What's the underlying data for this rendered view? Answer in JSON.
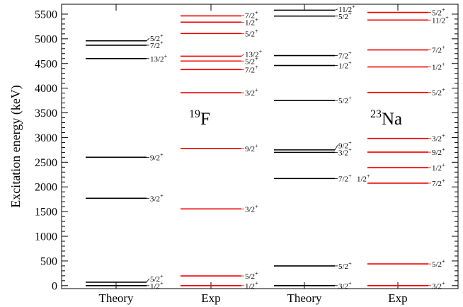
{
  "chart_data": {
    "type": "level-scheme",
    "ylabel": "Excitation energy (keV)",
    "ylim": [
      -60,
      5700
    ],
    "yticks": [
      0,
      500,
      1000,
      1500,
      2000,
      2500,
      3000,
      3500,
      4000,
      4500,
      5000,
      5500
    ],
    "categories": [
      "Theory",
      "Exp",
      "Theory",
      "Exp"
    ],
    "nuclei": [
      {
        "mass": "19",
        "symbol": "F",
        "columns": [
          0,
          1
        ]
      },
      {
        "mass": "23",
        "symbol": "Na",
        "columns": [
          2,
          3
        ]
      }
    ],
    "colors": {
      "theory": "#000000",
      "exp": "#ee0000"
    },
    "columns": [
      {
        "category": "Theory",
        "color": "theory",
        "levels": [
          {
            "energy": 0,
            "jp": [
              {
                "j": "1/2",
                "p": "+"
              }
            ]
          },
          {
            "energy": 70,
            "jp": [
              {
                "j": "5/2",
                "p": "+"
              }
            ]
          },
          {
            "energy": 1770,
            "jp": [
              {
                "j": "3/2",
                "p": "+"
              }
            ]
          },
          {
            "energy": 2600,
            "jp": [
              {
                "j": "9/2",
                "p": "+"
              }
            ]
          },
          {
            "energy": 4600,
            "jp": [
              {
                "j": "13/2",
                "p": "+"
              }
            ]
          },
          {
            "energy": 4870,
            "jp": [
              {
                "j": "7/2",
                "p": "+"
              }
            ]
          },
          {
            "energy": 4960,
            "jp": [
              {
                "j": "5/2",
                "p": "+"
              }
            ]
          }
        ]
      },
      {
        "category": "Exp",
        "color": "exp",
        "levels": [
          {
            "energy": 0,
            "jp": [
              {
                "j": "1/2",
                "p": "+"
              }
            ]
          },
          {
            "energy": 197,
            "jp": [
              {
                "j": "5/2",
                "p": "+"
              }
            ]
          },
          {
            "energy": 1554,
            "jp": [
              {
                "j": "3/2",
                "p": "+"
              }
            ]
          },
          {
            "energy": 2780,
            "jp": [
              {
                "j": "9/2",
                "p": "+"
              }
            ]
          },
          {
            "energy": 3908,
            "jp": [
              {
                "j": "3/2",
                "p": "+"
              }
            ]
          },
          {
            "energy": 4378,
            "jp": [
              {
                "j": "7/2",
                "p": "+"
              }
            ]
          },
          {
            "energy": 4550,
            "jp": [
              {
                "j": "5/2",
                "p": "+"
              }
            ]
          },
          {
            "energy": 4648,
            "jp": [
              {
                "j": "13/2",
                "p": "+"
              }
            ]
          },
          {
            "energy": 5107,
            "jp": [
              {
                "j": "5/2",
                "p": "+"
              }
            ]
          },
          {
            "energy": 5337,
            "jp": [
              {
                "j": "1/2",
                "p": "+"
              }
            ]
          },
          {
            "energy": 5465,
            "jp": [
              {
                "j": "7/2",
                "p": "+"
              }
            ]
          }
        ]
      },
      {
        "category": "Theory",
        "color": "theory",
        "levels": [
          {
            "energy": 0,
            "jp": [
              {
                "j": "3/2",
                "p": "+"
              }
            ]
          },
          {
            "energy": 400,
            "jp": [
              {
                "j": "5/2",
                "p": "+"
              }
            ]
          },
          {
            "energy": 2170,
            "jp": [
              {
                "j": "7/2",
                "p": "+"
              },
              {
                "j": "1/2",
                "p": "+"
              }
            ]
          },
          {
            "energy": 2700,
            "jp": [
              {
                "j": "3/2",
                "p": "+"
              }
            ]
          },
          {
            "energy": 2750,
            "jp": [
              {
                "j": "9/2",
                "p": "+"
              }
            ]
          },
          {
            "energy": 3750,
            "jp": [
              {
                "j": "5/2",
                "p": "+"
              }
            ]
          },
          {
            "energy": 4460,
            "jp": [
              {
                "j": "1/2",
                "p": "+"
              }
            ]
          },
          {
            "energy": 4660,
            "jp": [
              {
                "j": "7/2",
                "p": "+"
              }
            ]
          },
          {
            "energy": 5460,
            "jp": [
              {
                "j": "5/2",
                "p": "+"
              }
            ]
          },
          {
            "energy": 5580,
            "jp": [
              {
                "j": "11/2",
                "p": "+"
              }
            ]
          }
        ]
      },
      {
        "category": "Exp",
        "color": "exp",
        "levels": [
          {
            "energy": 0,
            "jp": [
              {
                "j": "3/2",
                "p": "+"
              }
            ]
          },
          {
            "energy": 440,
            "jp": [
              {
                "j": "5/2",
                "p": "+"
              }
            ]
          },
          {
            "energy": 2076,
            "jp": [
              {
                "j": "7/2",
                "p": "+"
              }
            ]
          },
          {
            "energy": 2391,
            "jp": [
              {
                "j": "1/2",
                "p": "+"
              }
            ]
          },
          {
            "energy": 2704,
            "jp": [
              {
                "j": "9/2",
                "p": "+"
              }
            ]
          },
          {
            "energy": 2982,
            "jp": [
              {
                "j": "3/2",
                "p": "+"
              }
            ]
          },
          {
            "energy": 3914,
            "jp": [
              {
                "j": "5/2",
                "p": "+"
              }
            ]
          },
          {
            "energy": 4430,
            "jp": [
              {
                "j": "1/2",
                "p": "+"
              }
            ]
          },
          {
            "energy": 4775,
            "jp": [
              {
                "j": "7/2",
                "p": "+"
              }
            ]
          },
          {
            "energy": 5380,
            "jp": [
              {
                "j": "11/2",
                "p": "+"
              }
            ]
          },
          {
            "energy": 5534,
            "jp": [
              {
                "j": "5/2",
                "p": "+"
              }
            ]
          }
        ]
      }
    ]
  }
}
